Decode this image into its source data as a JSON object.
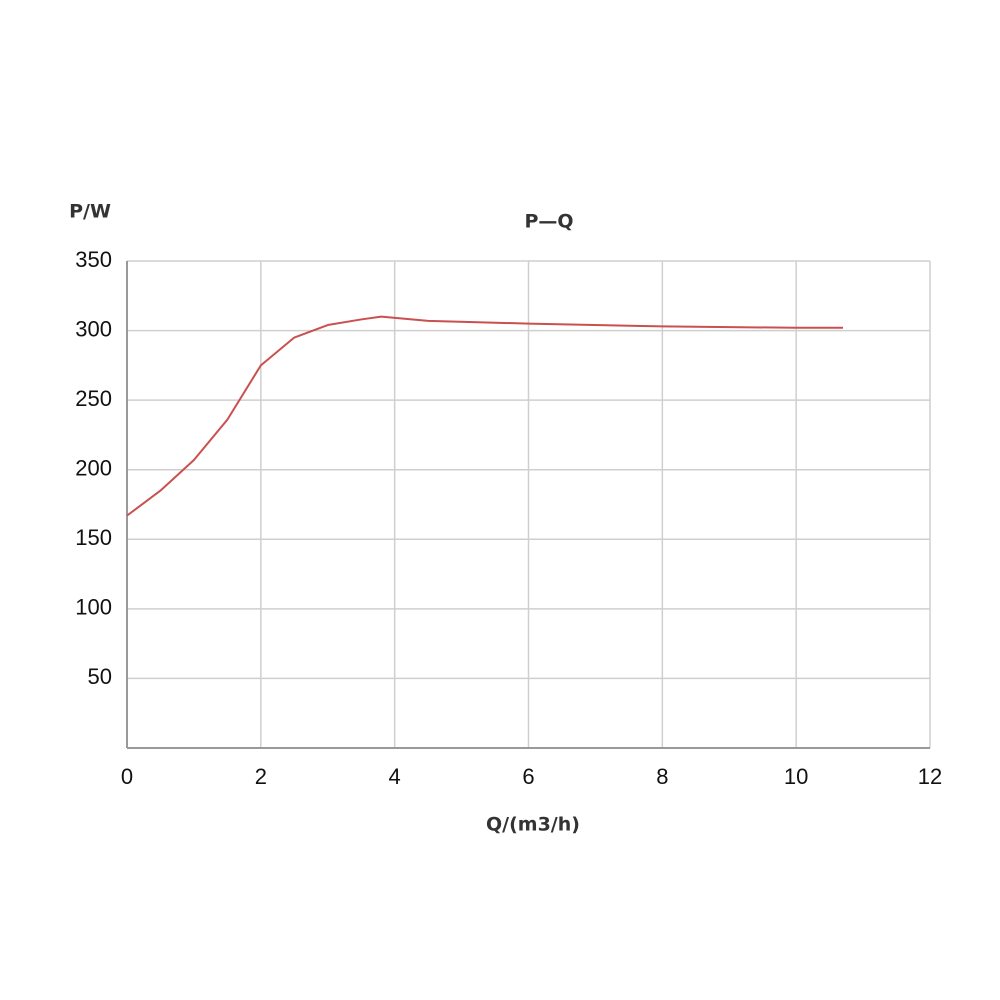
{
  "chart_data": {
    "type": "line",
    "title": "P—Q",
    "y_label": "P/W",
    "x_label": "Q/(m3/h)",
    "x": [
      0,
      0.5,
      1,
      1.5,
      2,
      2.5,
      3,
      3.5,
      3.8,
      4.5,
      6,
      8,
      10,
      10.7
    ],
    "series": [
      {
        "name": "P",
        "color": "#c9504f",
        "values": [
          167,
          185,
          207,
          236,
          275,
          295,
          304,
          308,
          310,
          307,
          305,
          303,
          302,
          302
        ]
      }
    ],
    "xlim": [
      0,
      12
    ],
    "xticks": [
      0,
      2,
      4,
      6,
      8,
      10,
      12
    ],
    "ylim": [
      0,
      350
    ],
    "yticks": [
      50,
      100,
      150,
      200,
      250,
      300,
      350
    ],
    "grid": true
  }
}
